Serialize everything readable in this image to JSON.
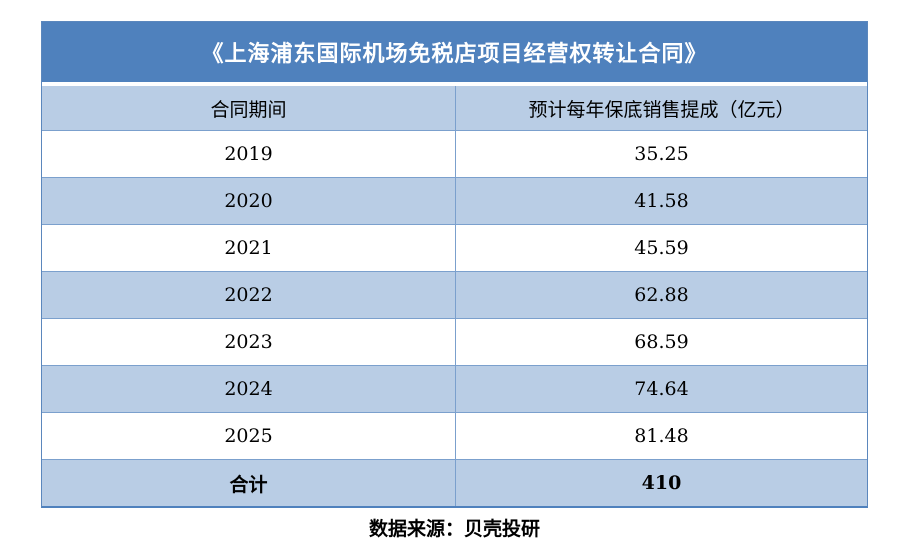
{
  "title": "《上海浦东国际机场免税店项目经营权转让合同》",
  "table": {
    "columns": [
      "合同期间",
      "预计每年保底销售提成（亿元）"
    ],
    "rows": [
      {
        "period": "2019",
        "value": "35.25",
        "bold": false
      },
      {
        "period": "2020",
        "value": "41.58",
        "bold": false
      },
      {
        "period": "2021",
        "value": "45.59",
        "bold": false
      },
      {
        "period": "2022",
        "value": "62.88",
        "bold": false
      },
      {
        "period": "2023",
        "value": "68.59",
        "bold": false
      },
      {
        "period": "2024",
        "value": "74.64",
        "bold": false
      },
      {
        "period": "2025",
        "value": "81.48",
        "bold": false
      },
      {
        "period": "合计",
        "value": "410",
        "bold": true
      }
    ]
  },
  "footer": "数据来源：贝壳投研",
  "colors": {
    "title_bar": "#4f81bd",
    "row_alt": "#b9cde5",
    "row_white": "#ffffff",
    "border": "#7ba0cd",
    "title_text": "#ffffff",
    "body_text": "#000000"
  },
  "chart_data": {
    "type": "table",
    "title": "《上海浦东国际机场免税店项目经营权转让合同》",
    "columns": [
      "合同期间",
      "预计每年保底销售提成（亿元）"
    ],
    "rows": [
      [
        "2019",
        35.25
      ],
      [
        "2020",
        41.58
      ],
      [
        "2021",
        45.59
      ],
      [
        "2022",
        62.88
      ],
      [
        "2023",
        68.59
      ],
      [
        "2024",
        74.64
      ],
      [
        "2025",
        81.48
      ],
      [
        "合计",
        410
      ]
    ],
    "source": "数据来源：贝壳投研"
  }
}
